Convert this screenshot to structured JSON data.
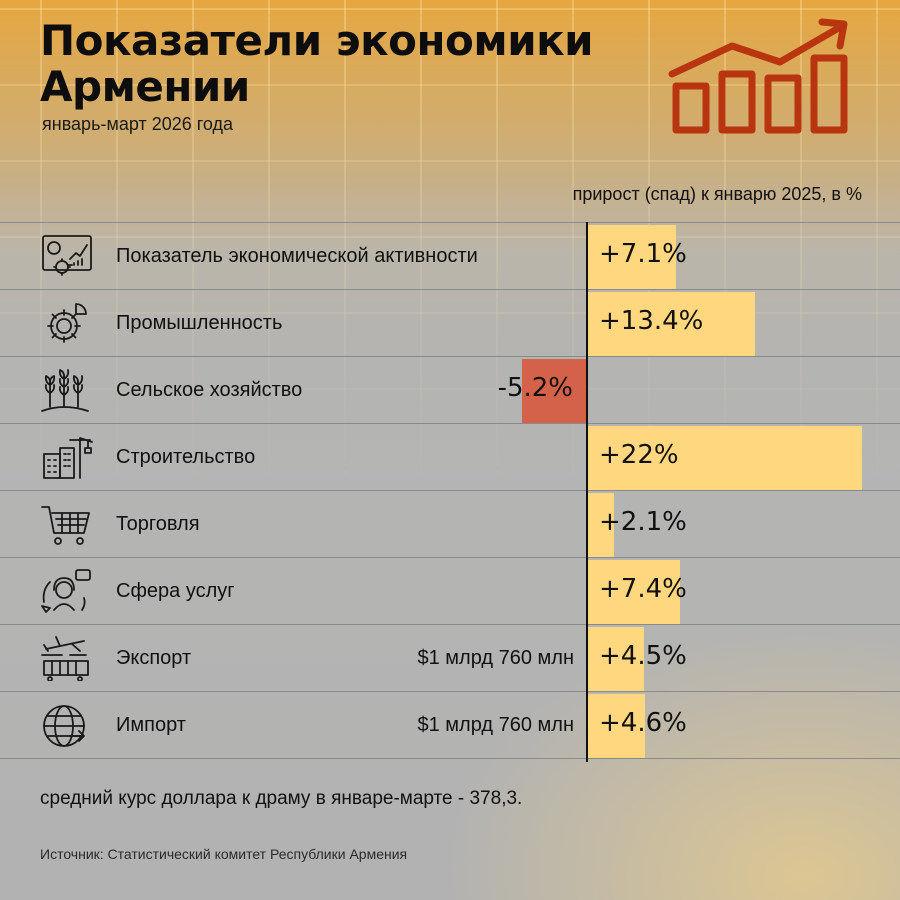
{
  "title": "Показатели экономики Армении",
  "subtitle": "январь-март 2026 года",
  "unit_label": "прирост (спад) к январю 2025, в %",
  "chart_data": {
    "type": "bar",
    "orientation": "horizontal",
    "categories": [
      "Показатель экономической активности",
      "Промышленность",
      "Сельское хозяйство",
      "Строительство",
      "Торговля",
      "Сфера услуг",
      "Экспорт",
      "Импорт"
    ],
    "values": [
      7.1,
      13.4,
      -5.2,
      22,
      2.1,
      7.4,
      4.5,
      4.6
    ],
    "value_labels": [
      "+7.1%",
      "+13.4%",
      "-5.2%",
      "+22%",
      "+2.1%",
      "+7.4%",
      "+4.5%",
      "+4.6%"
    ],
    "notes": [
      "",
      "",
      "",
      "",
      "",
      "",
      "$1 млрд 760 млн",
      "$1 млрд 760 млн"
    ],
    "icons": [
      "dashboard-icon",
      "gear-icon",
      "wheat-icon",
      "building-crane-icon",
      "shopping-cart-icon",
      "support-agent-icon",
      "export-plane-icon",
      "import-globe-icon"
    ],
    "colors": {
      "positive": "#ffd77e",
      "negative": "#d4614a"
    }
  },
  "footer_note": "средний курс доллара к драму в январе-марте - 378,3.",
  "source": "Источник: Статистический комитет Республики Армения"
}
